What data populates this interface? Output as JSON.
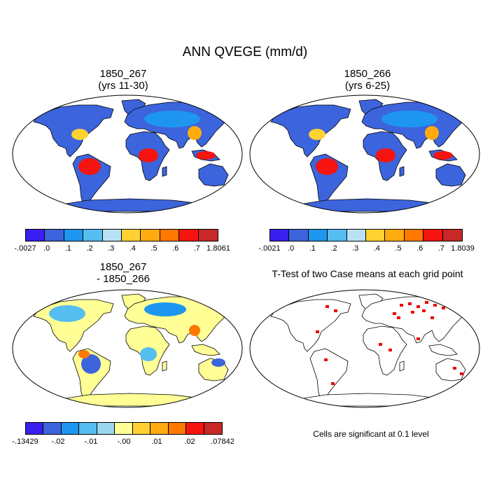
{
  "figure": {
    "title": "ANN QVEGE (mm/d)",
    "panels": [
      {
        "title_line1": "1850_267",
        "title_line2": "(yrs 11-30)"
      },
      {
        "title_line1": "1850_266",
        "title_line2": "(yrs 6-25)"
      },
      {
        "title_line1": "1850_267",
        "title_line2": "- 1850_266"
      },
      {
        "title_line1": "T-Test of two Case means at each grid point",
        "title_line2": ""
      }
    ],
    "significance_note": "Cells are significant at 0.1 level"
  },
  "chart_data": [
    {
      "type": "heatmap",
      "title": "1850_267 (yrs 11-30)",
      "projection": "Robinson world map",
      "colorbar": {
        "labels": [
          "-.0027",
          ".0",
          ".1",
          ".2",
          ".3",
          ".4",
          ".5",
          ".6",
          ".7",
          "1.8061"
        ],
        "min": -0.0027,
        "max": 1.8061,
        "levels": [
          0,
          0.1,
          0.2,
          0.3,
          0.4,
          0.5,
          0.6,
          0.7
        ],
        "colors": [
          "#3a1ff0",
          "#3c64dc",
          "#1e96f0",
          "#56bdf0",
          "#b8e2f4",
          "#ffd232",
          "#ffaa0f",
          "#ff7800",
          "#f5140f",
          "#c82828"
        ]
      },
      "patterns": "Highest (> 0.7) over Amazon basin, central Africa, Southeast Asia and Indonesia; 0.4-0.7 over southeast US, India, southeast China and tropical fringes; 0-0.2 over most other land; Antarctica and Greenland near 0."
    },
    {
      "type": "heatmap",
      "title": "1850_266 (yrs 6-25)",
      "projection": "Robinson world map",
      "colorbar": {
        "labels": [
          "-.0021",
          ".0",
          ".1",
          ".2",
          ".3",
          ".4",
          ".5",
          ".6",
          ".7",
          "1.8039"
        ],
        "min": -0.0021,
        "max": 1.8039,
        "levels": [
          0,
          0.1,
          0.2,
          0.3,
          0.4,
          0.5,
          0.6,
          0.7
        ],
        "colors": [
          "#3a1ff0",
          "#3c64dc",
          "#1e96f0",
          "#56bdf0",
          "#b8e2f4",
          "#ffd232",
          "#ffaa0f",
          "#ff7800",
          "#f5140f",
          "#c82828"
        ]
      },
      "patterns": "Spatial pattern nearly identical to 1850_267."
    },
    {
      "type": "heatmap",
      "title": "1850_267 - 1850_266",
      "projection": "Robinson world map",
      "colorbar": {
        "labels": [
          "-.13429",
          "-.02",
          "-.01",
          "-.00",
          ".01",
          ".02",
          ".07842"
        ],
        "min": -0.13429,
        "max": 0.07842,
        "colors": [
          "#3a1ff0",
          "#3c64dc",
          "#1e96f0",
          "#56bdf0",
          "#9cd7f0",
          "#ffff96",
          "#ffd232",
          "#ffaa0f",
          "#ff7800",
          "#f5140f",
          "#c82828"
        ]
      },
      "patterns": "Mixed small differences; near-zero pale yellow over deserts, Antarctica and high latitudes; positive and negative patches over Amazon, Africa, North America, Asia and Australia."
    },
    {
      "type": "heatmap",
      "title": "T-Test of two Case means at each grid point",
      "projection": "Robinson world map",
      "legend": "Cells are significant at 0.1 level",
      "colors": {
        "significant": "#ee0000"
      },
      "patterns": "Scattered significant cells mostly over northern Eurasia, with smaller clusters over North America, South America, Africa, India and Australia."
    }
  ]
}
